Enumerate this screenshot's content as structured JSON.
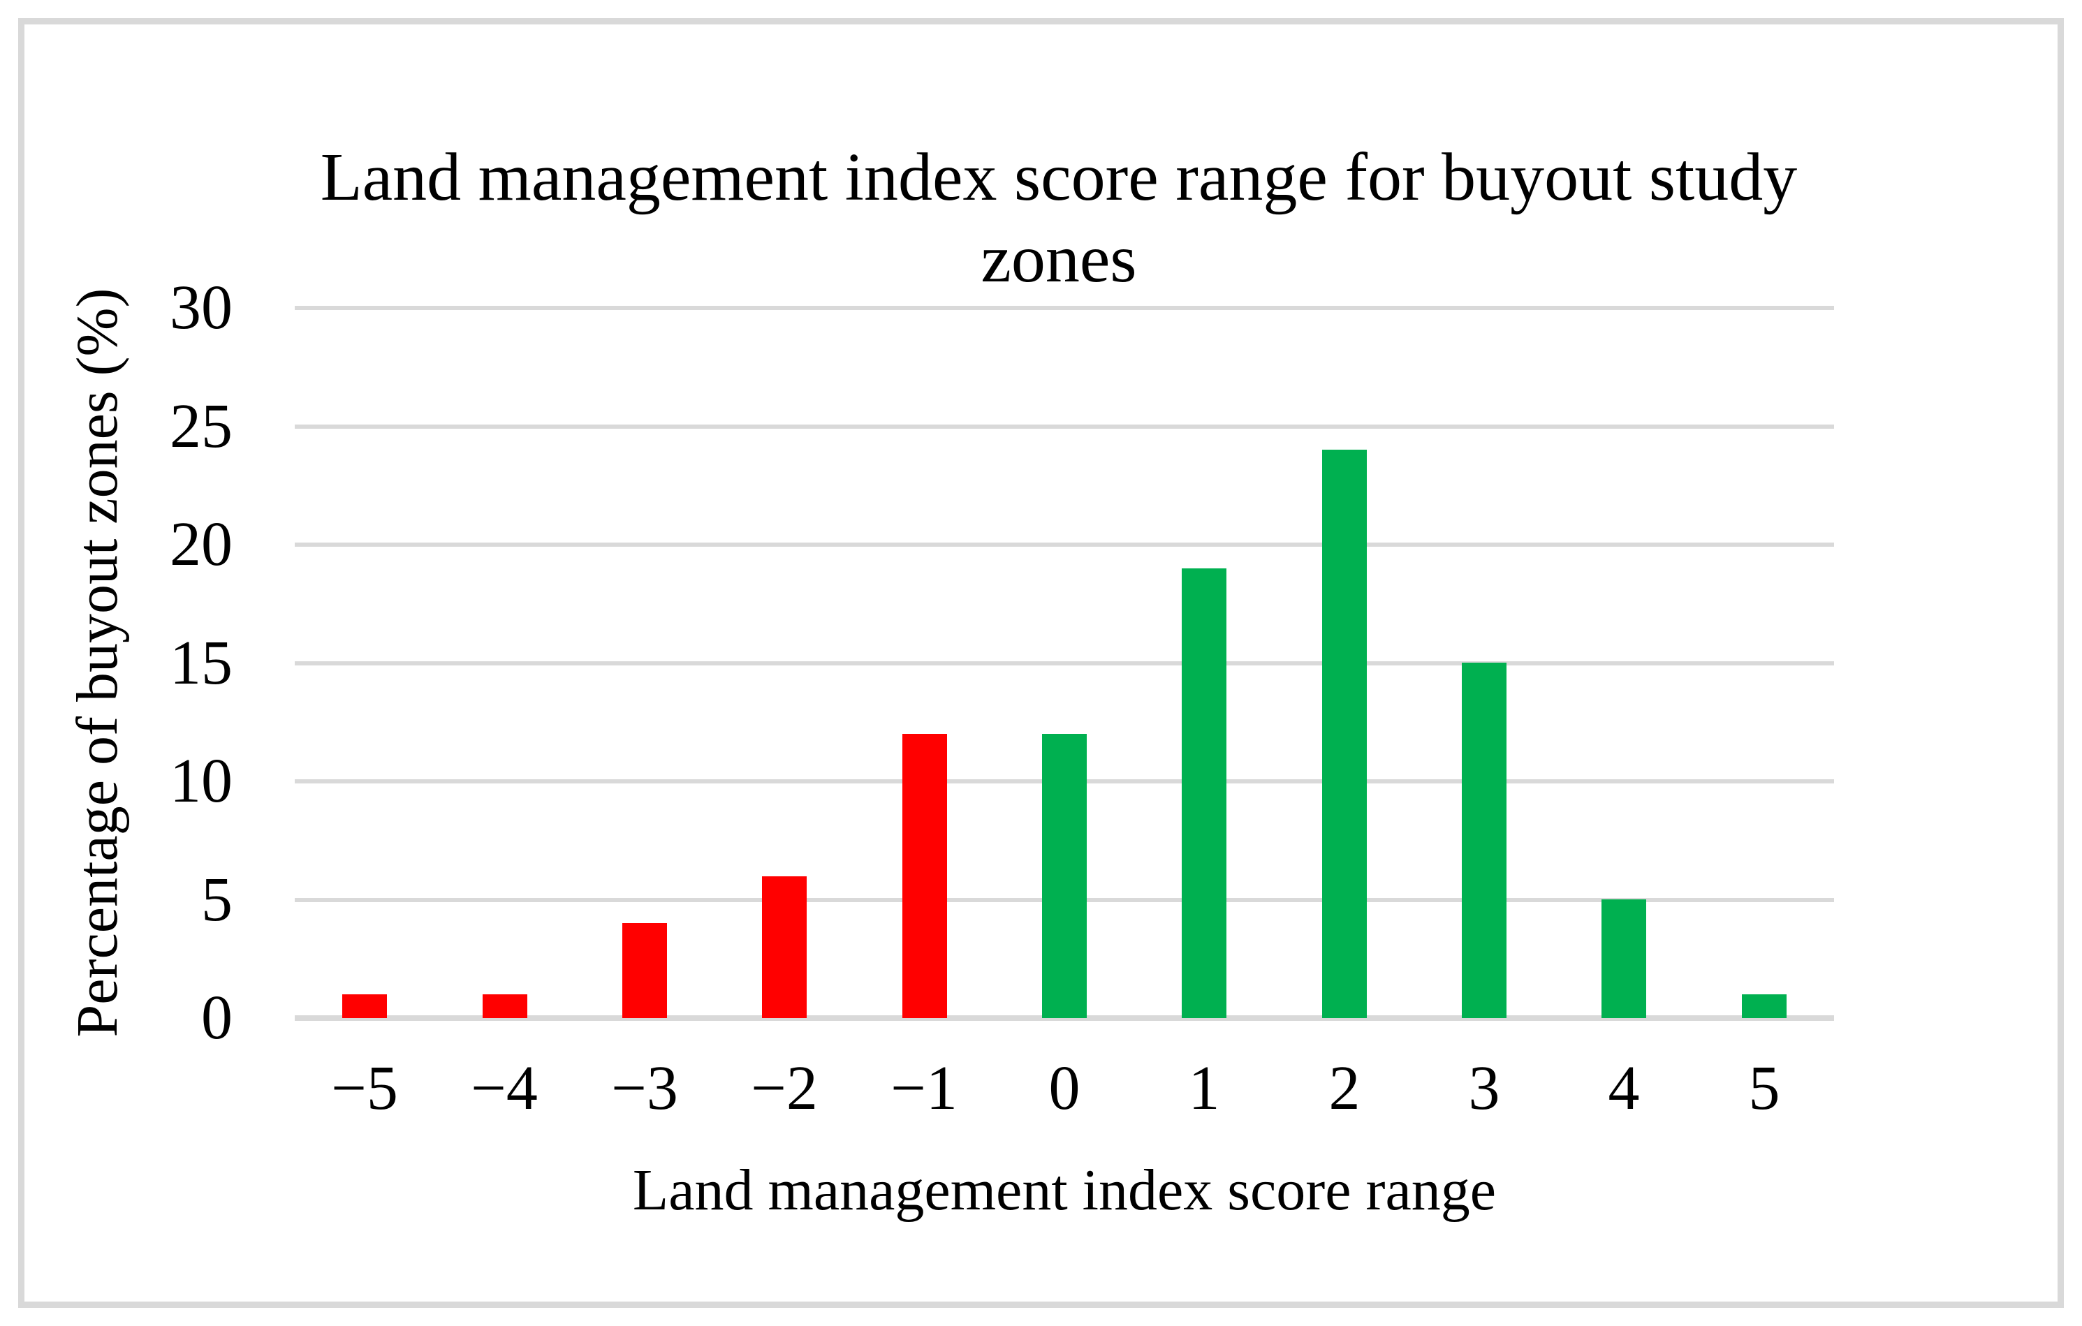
{
  "chart_data": {
    "type": "bar",
    "title": "Land management index score range for buyout study zones",
    "xlabel": "Land management index score range",
    "ylabel": "Percentage of buyout zones (%)",
    "categories": [
      "−5",
      "−4",
      "−3",
      "−2",
      "−1",
      "0",
      "1",
      "2",
      "3",
      "4",
      "5"
    ],
    "values": [
      1,
      1,
      4,
      6,
      12,
      12,
      19,
      24,
      15,
      5,
      1
    ],
    "bar_colors": [
      "#FF0000",
      "#FF0000",
      "#FF0000",
      "#FF0000",
      "#FF0000",
      "#00B050",
      "#00B050",
      "#00B050",
      "#00B050",
      "#00B050",
      "#00B050"
    ],
    "negative_color": "#FF0000",
    "positive_color": "#00B050",
    "ylim": [
      0,
      30
    ],
    "yticks": [
      0,
      5,
      10,
      15,
      20,
      25,
      30
    ],
    "grid": true,
    "gridline_color": "#D9D9D9",
    "axis_line_color": "#D9D9D9",
    "legend": "none"
  }
}
